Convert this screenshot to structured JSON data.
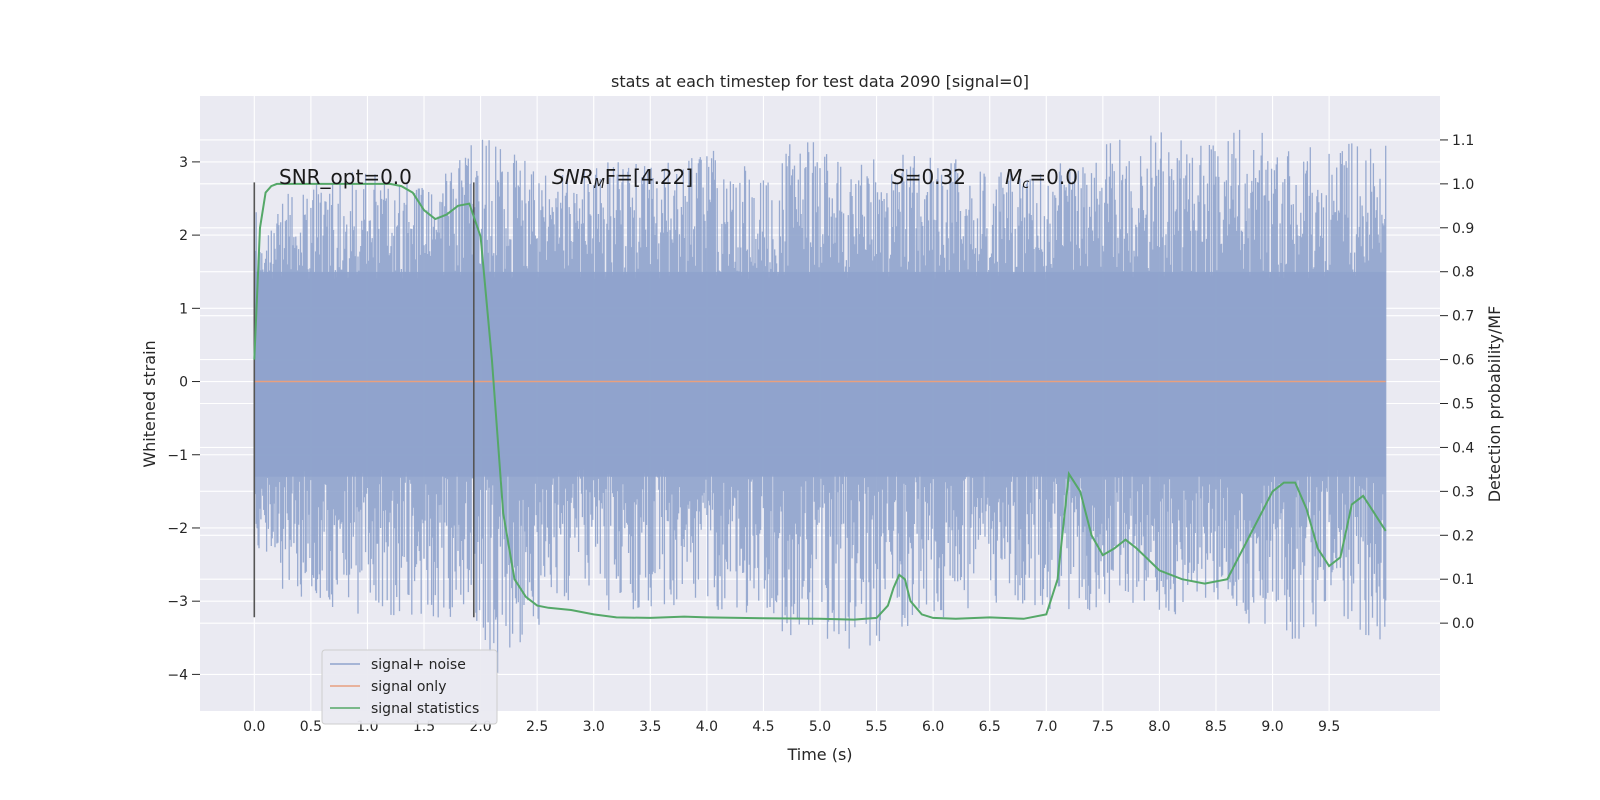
{
  "chart_data": {
    "type": "line",
    "title": "stats at each timestep for test data 2090 [signal=0]",
    "xlabel": "Time (s)",
    "ylabel_left": "Whitened strain",
    "ylabel_right": "Detection probability/MF",
    "xlim": [
      -0.48,
      10.48
    ],
    "ylim_left": [
      -4.5,
      3.9
    ],
    "ylim_right": [
      -0.2,
      1.2
    ],
    "x_ticks": [
      "0.0",
      "0.5",
      "1.0",
      "1.5",
      "2.0",
      "2.5",
      "3.0",
      "3.5",
      "4.0",
      "4.5",
      "5.0",
      "5.5",
      "6.0",
      "6.5",
      "7.0",
      "7.5",
      "8.0",
      "8.5",
      "9.0",
      "9.5"
    ],
    "x_tick_values": [
      0.0,
      0.5,
      1.0,
      1.5,
      2.0,
      2.5,
      3.0,
      3.5,
      4.0,
      4.5,
      5.0,
      5.5,
      6.0,
      6.5,
      7.0,
      7.5,
      8.0,
      8.5,
      9.0,
      9.5
    ],
    "y_left_ticks": [
      "3",
      "2",
      "1",
      "0",
      "−1",
      "−2",
      "−3",
      "−4"
    ],
    "y_left_tick_values": [
      3,
      2,
      1,
      0,
      -1,
      -2,
      -3,
      -4
    ],
    "y_right_ticks": [
      "1.1",
      "1.0",
      "0.9",
      "0.8",
      "0.7",
      "0.6",
      "0.5",
      "0.4",
      "0.3",
      "0.2",
      "0.1",
      "0.0"
    ],
    "y_right_tick_values": [
      1.1,
      1.0,
      0.9,
      0.8,
      0.7,
      0.6,
      0.5,
      0.4,
      0.3,
      0.2,
      0.1,
      0.0
    ],
    "grid": true,
    "legend_placement": "lower-left",
    "series": [
      {
        "name": "signal+ noise",
        "color": "#8fa3cc",
        "axis": "left",
        "x_range": [
          0.0,
          10.0
        ],
        "envelope": "noise, approx. -3.7 to 3.5",
        "peaks_upper": [
          [
            0.02,
            1.7
          ],
          [
            0.3,
            2.6
          ],
          [
            0.8,
            2.9
          ],
          [
            1.2,
            2.8
          ],
          [
            1.6,
            2.7
          ],
          [
            2.0,
            3.5
          ],
          [
            2.6,
            2.8
          ],
          [
            3.1,
            3.0
          ],
          [
            3.6,
            3.0
          ],
          [
            4.1,
            3.2
          ],
          [
            4.5,
            2.8
          ],
          [
            4.8,
            3.4
          ],
          [
            5.3,
            3.0
          ],
          [
            5.8,
            3.2
          ],
          [
            6.4,
            3.0
          ],
          [
            6.9,
            2.8
          ],
          [
            7.4,
            3.2
          ],
          [
            7.8,
            3.5
          ],
          [
            8.3,
            3.3
          ],
          [
            8.8,
            3.5
          ],
          [
            9.2,
            3.2
          ],
          [
            9.6,
            3.3
          ],
          [
            9.97,
            3.3
          ]
        ],
        "peaks_lower": [
          [
            0.02,
            -2.3
          ],
          [
            0.4,
            -3.2
          ],
          [
            0.9,
            -3.2
          ],
          [
            1.4,
            -3.3
          ],
          [
            1.9,
            -3.2
          ],
          [
            2.15,
            -4.0
          ],
          [
            2.7,
            -3.0
          ],
          [
            3.3,
            -3.2
          ],
          [
            3.9,
            -3.0
          ],
          [
            4.6,
            -3.5
          ],
          [
            5.4,
            -3.7
          ],
          [
            5.8,
            -3.4
          ],
          [
            6.0,
            -3.3
          ],
          [
            6.7,
            -3.0
          ],
          [
            7.15,
            -3.3
          ],
          [
            7.6,
            -3.0
          ],
          [
            8.1,
            -3.2
          ],
          [
            8.6,
            -3.1
          ],
          [
            9.15,
            -3.7
          ],
          [
            9.5,
            -3.2
          ],
          [
            9.97,
            -3.6
          ]
        ]
      },
      {
        "name": "signal only",
        "color": "#e8a07f",
        "axis": "left",
        "x": [
          0.0,
          10.0
        ],
        "y": [
          0.0,
          0.0
        ]
      },
      {
        "name": "signal statistics",
        "color": "#55a868",
        "axis": "right",
        "x": [
          0.0,
          0.05,
          0.1,
          0.15,
          0.2,
          0.3,
          0.5,
          0.8,
          1.0,
          1.2,
          1.3,
          1.4,
          1.5,
          1.6,
          1.7,
          1.8,
          1.9,
          2.0,
          2.1,
          2.2,
          2.3,
          2.4,
          2.5,
          2.6,
          2.8,
          3.0,
          3.2,
          3.5,
          3.8,
          4.0,
          4.5,
          5.0,
          5.3,
          5.5,
          5.6,
          5.65,
          5.7,
          5.75,
          5.8,
          5.9,
          6.0,
          6.2,
          6.5,
          6.8,
          7.0,
          7.1,
          7.2,
          7.3,
          7.4,
          7.5,
          7.6,
          7.7,
          7.8,
          8.0,
          8.2,
          8.4,
          8.6,
          8.8,
          9.0,
          9.1,
          9.2,
          9.3,
          9.4,
          9.5,
          9.6,
          9.7,
          9.8,
          9.9,
          10.0
        ],
        "y": [
          0.6,
          0.9,
          0.98,
          0.995,
          1.0,
          1.0,
          1.0,
          1.0,
          1.0,
          1.0,
          0.995,
          0.98,
          0.94,
          0.92,
          0.93,
          0.95,
          0.955,
          0.88,
          0.6,
          0.25,
          0.1,
          0.06,
          0.04,
          0.035,
          0.03,
          0.02,
          0.013,
          0.012,
          0.015,
          0.013,
          0.011,
          0.01,
          0.008,
          0.012,
          0.04,
          0.08,
          0.11,
          0.1,
          0.05,
          0.02,
          0.012,
          0.01,
          0.013,
          0.01,
          0.02,
          0.1,
          0.34,
          0.3,
          0.2,
          0.155,
          0.17,
          0.19,
          0.17,
          0.12,
          0.1,
          0.09,
          0.1,
          0.2,
          0.3,
          0.32,
          0.32,
          0.26,
          0.17,
          0.13,
          0.15,
          0.27,
          0.29,
          0.25,
          0.21
        ]
      }
    ],
    "vertical_lines": [
      {
        "x": 0.0,
        "y_from": -3.22,
        "y_to": 2.72,
        "color": "#555555"
      },
      {
        "x": 1.94,
        "y_from": -3.22,
        "y_to": 2.72,
        "color": "#555555"
      }
    ],
    "annotations": {
      "snr_opt": "SNR_opt=0.0",
      "snr_mf_main": "SNR",
      "snr_mf_sub": "M",
      "snr_mf_rest": "F=[4.22]",
      "s_label": "S",
      "s_rest": "=0.32",
      "mc_main": "M",
      "mc_sub": "c",
      "mc_rest": "=0.0"
    }
  }
}
